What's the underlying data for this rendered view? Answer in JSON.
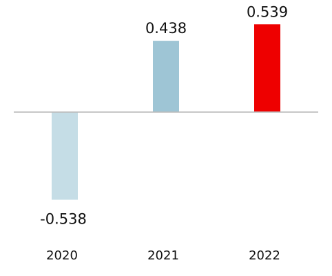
{
  "chart_data": {
    "type": "bar",
    "title": "",
    "xlabel": "",
    "ylabel": "",
    "categories": [
      "2020",
      "2021",
      "2022"
    ],
    "values": [
      -0.538,
      0.438,
      0.539
    ],
    "value_labels": [
      "-0.538",
      "0.438",
      "0.539"
    ],
    "ylim": [
      -0.538,
      0.539
    ],
    "grid": false,
    "bar_colors": [
      "#c5dde6",
      "#9ec5d5",
      "#ee0000"
    ],
    "baseline_color": "#bbbbbb"
  }
}
